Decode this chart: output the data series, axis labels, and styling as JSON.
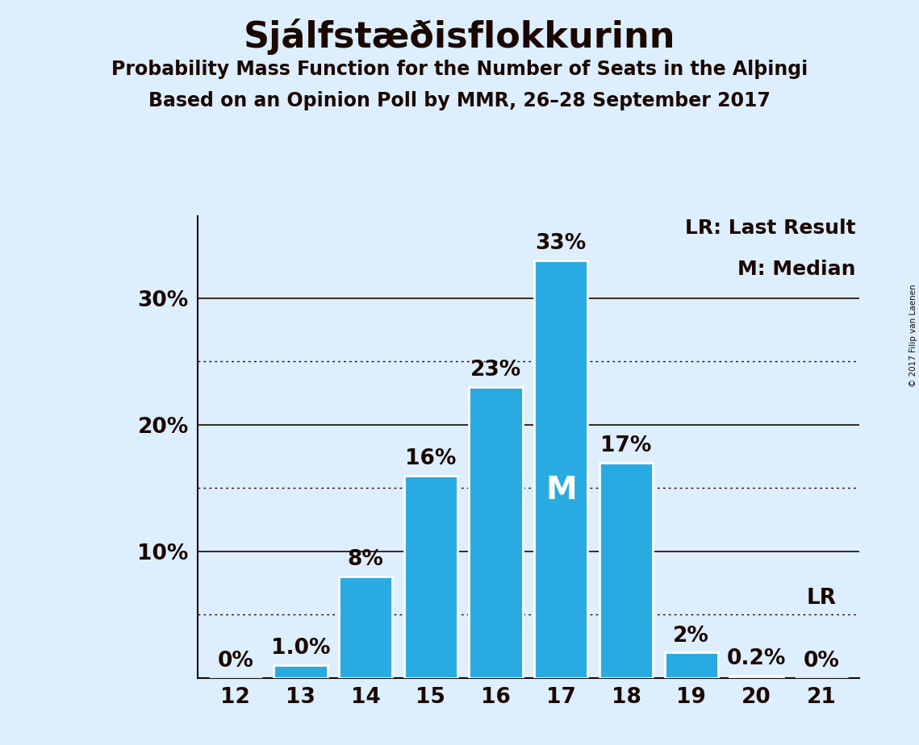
{
  "title": "Sjálfstæðisflokkurinn",
  "subtitle1": "Probability Mass Function for the Number of Seats in the Alþingi",
  "subtitle2": "Based on an Opinion Poll by MMR, 26–28 September 2017",
  "copyright": "© 2017 Filip van Laenen",
  "seats": [
    12,
    13,
    14,
    15,
    16,
    17,
    18,
    19,
    20,
    21
  ],
  "values": [
    0.0,
    1.0,
    8.0,
    16.0,
    23.0,
    33.0,
    17.0,
    2.0,
    0.2,
    0.0
  ],
  "bar_color": "#29ABE2",
  "bar_edge_color": "white",
  "background_color": "#DDEEFF",
  "text_color": "#1a0800",
  "median_seat": 17,
  "last_result_seat": 21,
  "median_label": "M",
  "lr_label": "LR",
  "legend_lr": "LR: Last Result",
  "legend_m": "M: Median",
  "solid_yticks": [
    10,
    20,
    30
  ],
  "dotted_yticks": [
    5,
    15,
    25
  ],
  "ylim": [
    0,
    36.5
  ],
  "bar_labels": [
    "0%",
    "1.0%",
    "8%",
    "16%",
    "23%",
    "33%",
    "17%",
    "2%",
    "0.2%",
    "0%"
  ]
}
